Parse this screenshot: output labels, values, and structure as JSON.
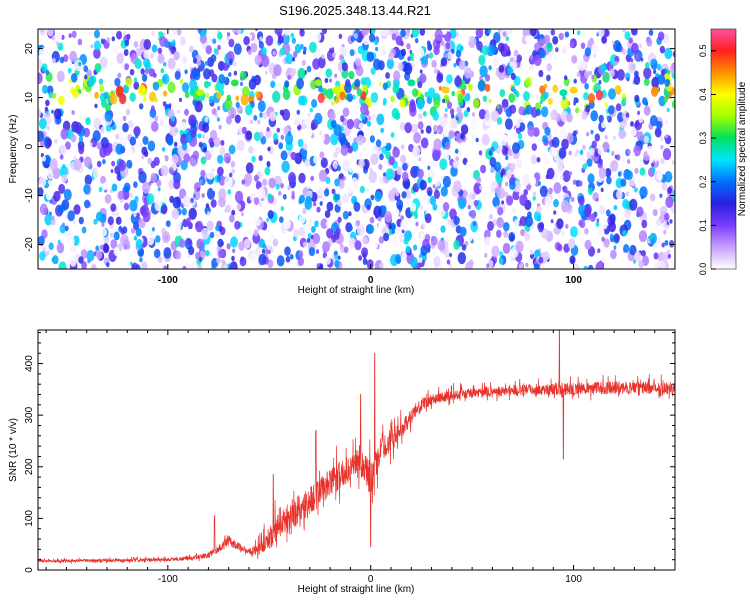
{
  "title": "S196.2025.348.13.44.R21",
  "chart_data": [
    {
      "type": "heatmap",
      "xlabel": "Height of straight line (km)",
      "ylabel": "Frequency (Hz)",
      "xlim": [
        -164,
        150
      ],
      "ylim": [
        -25,
        24
      ],
      "x_ticks": [
        -100,
        0,
        100
      ],
      "x_tick_labels": [
        "-100",
        "0",
        "100"
      ],
      "y_ticks": [
        -20,
        -10,
        0,
        10,
        20
      ],
      "y_tick_labels": [
        "-20",
        "-10",
        "0",
        "10",
        "20"
      ],
      "bright_band_frequency_hz": 11,
      "colorbar": {
        "label": "Normalized spectral amplitude",
        "range": [
          0,
          0.55
        ],
        "ticks": [
          0,
          0.1,
          0.2,
          0.3,
          0.4,
          0.5
        ],
        "tick_labels": [
          "0.0",
          "0.1",
          "0.2",
          "0.3",
          "0.4",
          "0.5"
        ],
        "colors": [
          "#ffffff",
          "#c8a0ff",
          "#7a3cff",
          "#2a1fe0",
          "#0070ff",
          "#00e5ff",
          "#00e060",
          "#a0ff00",
          "#ffff00",
          "#ff9000",
          "#ff2020",
          "#ff50a0"
        ]
      }
    },
    {
      "type": "line",
      "xlabel": "Height of straight line (km)",
      "ylabel": "SNR (10 * v/v)",
      "xlim": [
        -164,
        150
      ],
      "ylim": [
        0,
        465
      ],
      "x_ticks": [
        -100,
        0,
        100
      ],
      "x_tick_labels": [
        "-100",
        "0",
        "100"
      ],
      "y_ticks": [
        0,
        100,
        200,
        300,
        400
      ],
      "y_tick_labels": [
        "0",
        "100",
        "200",
        "300",
        "400"
      ],
      "grid": false,
      "series": [
        {
          "color": "#e8322b",
          "x": [
            -164,
            -140,
            -120,
            -100,
            -90,
            -80,
            -75,
            -70,
            -65,
            -60,
            -55,
            -50,
            -45,
            -40,
            -35,
            -30,
            -25,
            -20,
            -15,
            -10,
            -5,
            0,
            5,
            10,
            15,
            20,
            25,
            30,
            40,
            60,
            80,
            100,
            120,
            150
          ],
          "y": [
            17,
            18,
            18,
            20,
            22,
            28,
            40,
            55,
            45,
            35,
            40,
            60,
            85,
            100,
            115,
            130,
            150,
            165,
            180,
            195,
            215,
            170,
            230,
            250,
            270,
            295,
            318,
            330,
            338,
            345,
            348,
            350,
            352,
            352
          ],
          "noise_amplitude": [
            5,
            6,
            6,
            7,
            8,
            10,
            15,
            20,
            15,
            12,
            25,
            45,
            60,
            60,
            60,
            60,
            55,
            55,
            55,
            50,
            60,
            70,
            50,
            45,
            35,
            30,
            25,
            22,
            20,
            20,
            22,
            24,
            25,
            25
          ],
          "annotated_peaks": [
            {
              "x": -77,
              "y": 105
            },
            {
              "x": -48,
              "y": 185
            },
            {
              "x": -27,
              "y": 270
            },
            {
              "x": -5,
              "y": 340
            },
            {
              "x": 0,
              "y": 420
            },
            {
              "x": 2,
              "y": 420
            },
            {
              "x": 93,
              "y": 465
            }
          ],
          "annotated_dips": [
            {
              "x": 0,
              "y": 45
            },
            {
              "x": 95,
              "y": 215
            }
          ]
        }
      ]
    }
  ]
}
